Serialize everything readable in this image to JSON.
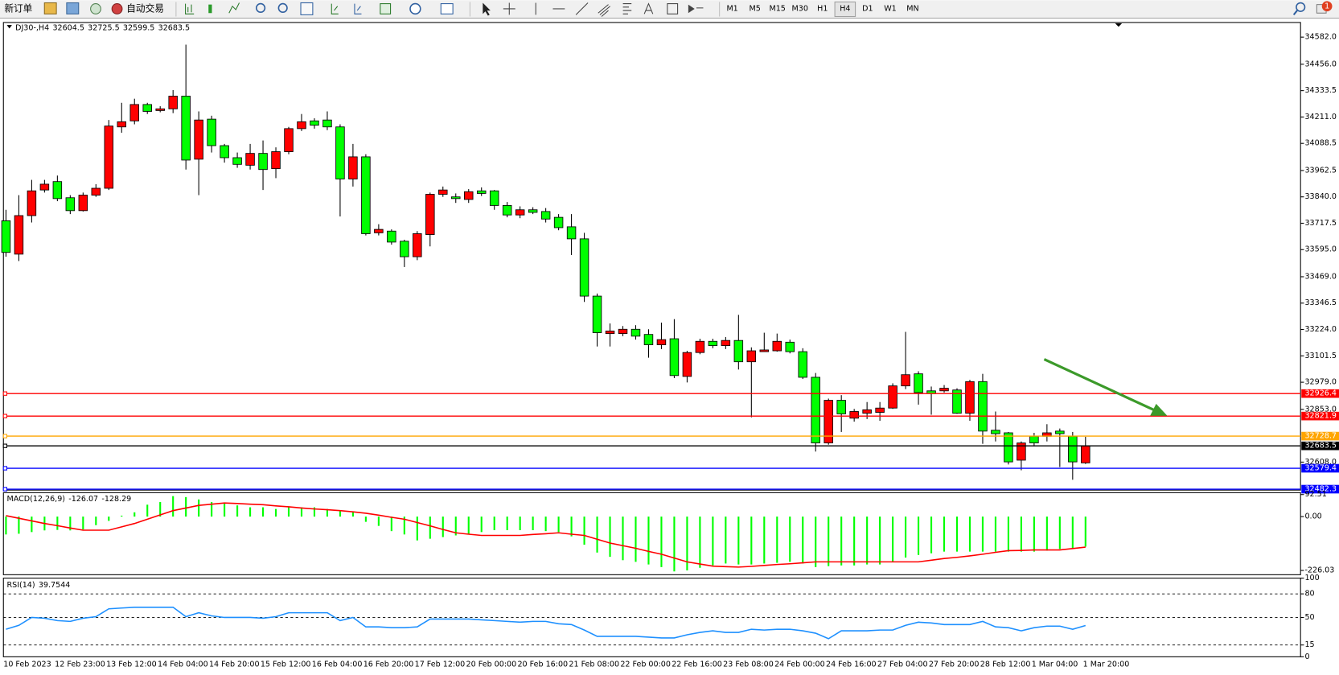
{
  "toolbar": {
    "new_order": "新订单",
    "auto_trading": "自动交易",
    "timeframes": [
      "M1",
      "M5",
      "M15",
      "M30",
      "H1",
      "H4",
      "D1",
      "W1",
      "MN"
    ],
    "notifications": "1"
  },
  "chart_data": [
    {
      "type": "candlestick",
      "title": "DJ30-,H4",
      "up_color": "#ff0000",
      "down_color": "#00ff00",
      "categories": [
        "10 Feb 2023",
        null,
        null,
        null,
        "12 Feb 23:00",
        null,
        null,
        null,
        "13 Feb 12:00",
        null,
        null,
        null,
        "14 Feb 04:00",
        null,
        null,
        null,
        "14 Feb 20:00",
        null,
        null,
        null,
        "15 Feb 12:00",
        null,
        null,
        null,
        "16 Feb 04:00",
        null,
        null,
        null,
        "16 Feb 20:00",
        null,
        null,
        null,
        "17 Feb 12:00",
        null,
        null,
        null,
        "20 Feb 00:00",
        null,
        null,
        null,
        "20 Feb 16:00",
        null,
        null,
        null,
        "21 Feb 08:00",
        null,
        null,
        null,
        "22 Feb 00:00",
        null,
        null,
        null,
        "22 Feb 16:00",
        null,
        null,
        null,
        "23 Feb 08:00",
        null,
        null,
        null,
        "24 Feb 00:00",
        null,
        null,
        null,
        "24 Feb 16:00",
        null,
        null,
        null,
        "27 Feb 04:00",
        null,
        null,
        null,
        "27 Feb 20:00",
        null,
        null,
        null,
        "28 Feb 12:00",
        null,
        null,
        null,
        "1 Mar 04:00",
        null,
        null,
        null,
        "1 Mar 20:00"
      ],
      "open": [
        33729,
        33574,
        33753,
        33872,
        33911,
        33836,
        33776,
        33848,
        33880,
        34165,
        34193,
        34269,
        34241,
        34249,
        34308,
        34015,
        34201,
        34078,
        34022,
        33987,
        34042,
        33971,
        34050,
        34157,
        34193,
        34197,
        34165,
        33923,
        34026,
        33673,
        33681,
        33634,
        33562,
        33665,
        33852,
        33840,
        33828,
        33868,
        33868,
        33800,
        33756,
        33780,
        33772,
        33745,
        33701,
        33645,
        33379,
        33205,
        33205,
        33225,
        33201,
        33153,
        33181,
        33006,
        33117,
        33169,
        33149,
        33173,
        33074,
        33121,
        33125,
        33165,
        33121,
        33002,
        32697,
        32895,
        32812,
        32835,
        32839,
        32859,
        32962,
        33018,
        32939,
        32939,
        32943,
        32835,
        32982,
        32756,
        32744,
        32617,
        32728,
        32728,
        32752,
        32728,
        32604.5
      ],
      "high": [
        33780,
        33848,
        33919,
        33919,
        33939,
        33848,
        33860,
        33899,
        34197,
        34277,
        34296,
        34277,
        34261,
        34336,
        34547,
        34237,
        34217,
        34086,
        34046,
        34086,
        34102,
        34070,
        34165,
        34225,
        34205,
        34237,
        34177,
        34086,
        34038,
        33713,
        33689,
        33641,
        33681,
        33860,
        33888,
        33856,
        33876,
        33884,
        33872,
        33816,
        33796,
        33792,
        33788,
        33760,
        33760,
        33673,
        33391,
        33252,
        33240,
        33244,
        33225,
        33256,
        33272,
        33125,
        33181,
        33181,
        33189,
        33292,
        33141,
        33209,
        33205,
        33177,
        33137,
        33022,
        32903,
        32919,
        32855,
        32887,
        32887,
        32974,
        33213,
        33030,
        32959,
        32966,
        32951,
        32990,
        33018,
        32843,
        32748,
        32704,
        32744,
        32784,
        32764,
        32748,
        32725.5
      ],
      "low": [
        33562,
        33542,
        33721,
        33860,
        33820,
        33760,
        33772,
        33840,
        33872,
        34138,
        34177,
        34225,
        34233,
        34229,
        33967,
        33848,
        34046,
        33999,
        33975,
        33967,
        33872,
        33927,
        34038,
        34146,
        34157,
        34150,
        33749,
        33888,
        33661,
        33661,
        33618,
        33514,
        33546,
        33610,
        33840,
        33812,
        33812,
        33844,
        33780,
        33745,
        33741,
        33760,
        33721,
        33685,
        33570,
        33352,
        33145,
        33145,
        33193,
        33177,
        33093,
        33133,
        32998,
        32978,
        33109,
        33137,
        33133,
        33038,
        32816,
        33121,
        33121,
        33113,
        32994,
        32657,
        32689,
        32748,
        32796,
        32808,
        32800,
        32855,
        32947,
        32875,
        32828,
        32931,
        32832,
        32800,
        32693,
        32704,
        32597,
        32570,
        32681,
        32704,
        32585,
        32526,
        32599.5
      ],
      "close": [
        33582,
        33753,
        33868,
        33899,
        33832,
        33776,
        33848,
        33880,
        34169,
        34189,
        34269,
        34237,
        34249,
        34308,
        34011,
        34197,
        34078,
        34022,
        33991,
        34042,
        33967,
        34050,
        34157,
        34189,
        34173,
        34165,
        33923,
        34026,
        33669,
        33689,
        33630,
        33562,
        33669,
        33852,
        33872,
        33832,
        33864,
        33856,
        33800,
        33756,
        33780,
        33768,
        33737,
        33697,
        33645,
        33379,
        33209,
        33217,
        33225,
        33193,
        33153,
        33177,
        33010,
        33117,
        33169,
        33149,
        33173,
        33074,
        33125,
        33129,
        33169,
        33121,
        33002,
        32697,
        32895,
        32832,
        32843,
        32851,
        32859,
        32962,
        33014,
        32931,
        32927,
        32951,
        32835,
        32982,
        32752,
        32740,
        32609,
        32697,
        32697,
        32744,
        32740,
        32609,
        32683.5
      ],
      "ylim": [
        32478,
        34650
      ],
      "yticks": [
        {
          "value": 34582,
          "label": "34582.0"
        },
        {
          "value": 34456,
          "label": "34456.0"
        },
        34333.5,
        {
          "value": 34211,
          "label": "34211.0"
        },
        34088.5,
        33962.5,
        {
          "value": 33840,
          "label": "33840.0"
        },
        33717.5,
        {
          "value": 33595,
          "label": "33595.0"
        },
        {
          "value": 33469,
          "label": "33469.0"
        },
        33346.5,
        {
          "value": 33224,
          "label": "33224.0"
        },
        33101.5,
        {
          "value": 32979,
          "label": "32979.0"
        },
        {
          "value": 32853,
          "label": "32853.0"
        },
        {
          "value": 32608,
          "label": "32608.0"
        }
      ],
      "levels": [
        {
          "value": 32926.4,
          "color": "#ff0000"
        },
        {
          "value": 32821.9,
          "color": "#ff0000"
        },
        {
          "value": 32728.7,
          "color": "#ffa500"
        },
        {
          "value": 32579.4,
          "color": "#0000ff"
        },
        {
          "value": 32482.3,
          "color": "#0000ff"
        }
      ]
    },
    {
      "type": "macd",
      "title": "MACD(12,26,9)",
      "ylim": [
        -244,
        100.5
      ],
      "yticks": [
        92.51,
        {
          "value": 0,
          "label": "0.00"
        },
        -226.03
      ],
      "series": [
        {
          "type": "bar",
          "color": "#00ff00",
          "values": [
            -75,
            -72,
            -65,
            -58,
            -56,
            -58,
            -54,
            -36,
            -18,
            4,
            18,
            50,
            61,
            86,
            82,
            72,
            61,
            54,
            47,
            39,
            39,
            32,
            43,
            39,
            39,
            32,
            25,
            22,
            -22,
            -39,
            -61,
            -75,
            -100,
            -93,
            -86,
            -79,
            -72,
            -65,
            -57,
            -57,
            -57,
            -57,
            -61,
            -65,
            -83,
            -118,
            -151,
            -169,
            -183,
            -190,
            -201,
            -212,
            -230,
            -226,
            -215,
            -205,
            -197,
            -201,
            -201,
            -197,
            -194,
            -190,
            -197,
            -212,
            -208,
            -205,
            -205,
            -201,
            -201,
            -190,
            -172,
            -161,
            -154,
            -147,
            -147,
            -147,
            -147,
            -147,
            -147,
            -147,
            -147,
            -143,
            -136,
            -133,
            -126.07
          ]
        },
        {
          "type": "line",
          "color": "#ff0000",
          "values": [
            4,
            -7,
            -18,
            -29,
            -38,
            -48,
            -57,
            -57,
            -57,
            -43,
            -29,
            -11,
            7,
            25,
            36,
            47,
            52,
            57,
            55,
            52,
            50,
            45,
            41,
            36,
            32,
            29,
            25,
            20,
            14,
            6,
            -3,
            -11,
            -25,
            -39,
            -54,
            -68,
            -74,
            -79,
            -79,
            -79,
            -79,
            -75,
            -72,
            -68,
            -74,
            -79,
            -95,
            -111,
            -122,
            -133,
            -146,
            -158,
            -174,
            -190,
            -199,
            -208,
            -210,
            -212,
            -209,
            -205,
            -201,
            -198,
            -194,
            -190,
            -190,
            -190,
            -190,
            -190,
            -190,
            -190,
            -190,
            -190,
            -183,
            -176,
            -171,
            -165,
            -158,
            -150,
            -143,
            -142,
            -140,
            -140,
            -140,
            -134,
            -128.29
          ]
        }
      ]
    },
    {
      "type": "line",
      "title": "RSI(14)",
      "color": "#1e90ff",
      "ylim": [
        0,
        100
      ],
      "yticks": [
        100,
        80,
        50,
        15,
        0
      ],
      "levels": [
        80,
        50,
        15
      ],
      "values": [
        35,
        40,
        50,
        49,
        46,
        45,
        49,
        51,
        61,
        62,
        63,
        63,
        63,
        63,
        51,
        56,
        52,
        50,
        50,
        50,
        49,
        51,
        56,
        56,
        56,
        56,
        46,
        50,
        38,
        38,
        37,
        37,
        38,
        48,
        48,
        48,
        48,
        47,
        46,
        45,
        44,
        45,
        45,
        42,
        41,
        34,
        26,
        26,
        26,
        26,
        25,
        24,
        24,
        28,
        31,
        33,
        31,
        31,
        35,
        34,
        35,
        35,
        33,
        30,
        23,
        33,
        33,
        33,
        34,
        34,
        40,
        44,
        43,
        41,
        41,
        41,
        45,
        38,
        37,
        33,
        37,
        39,
        39,
        35,
        39.7544
      ]
    }
  ]
}
